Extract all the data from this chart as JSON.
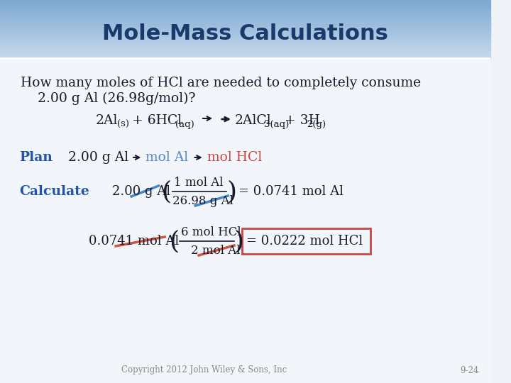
{
  "title": "Mole-Mass Calculations",
  "title_color": "#1a3a6b",
  "title_fontsize": 22,
  "header_bg_top": "#7ea8d0",
  "header_bg_bottom": "#c8d8e8",
  "body_bg": "#f0f4f8",
  "blue_label_color": "#2255aa",
  "dark_text_color": "#1a1a2e",
  "teal_text_color": "#5588cc",
  "red_text_color": "#cc4444",
  "copyright_text": "Copyright 2012 John Wiley & Sons, Inc",
  "page_number": "9-24"
}
